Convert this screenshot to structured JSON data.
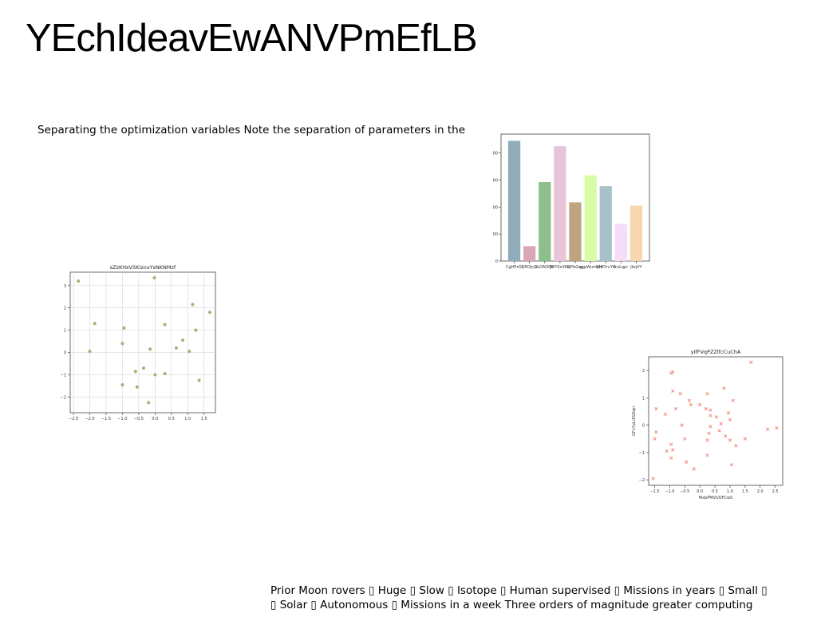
{
  "slide": {
    "title": "YEchIdeavEwANVPmEfLB",
    "subtitle": "Separating the optimization variables Note the separation of parameters in the",
    "footer_line1": "Prior Moon rovers ▯ Huge ▯ Slow ▯ Isotope ▯ Human supervised ▯ Missions in years ▯ Small ▯",
    "footer_line2": "▯ Solar ▯ Autonomous ▯ Missions in a week Three orders of magnitude greater computing"
  },
  "chart_data": [
    {
      "type": "bar",
      "title": "",
      "xlabel": "",
      "ylabel": "",
      "categories": [
        "CgHFzGl",
        "QROJnJk",
        "ILOADIW",
        "JWYSoYAQ",
        "lnPbGqp",
        "ngpWumeH",
        "QhKYrcYD",
        "IruLqpr",
        "JbqVY"
      ],
      "values": [
        890,
        110,
        585,
        850,
        435,
        635,
        555,
        275,
        410
      ],
      "colors": [
        "#8fadb8",
        "#d9a6b4",
        "#8cbf8d",
        "#e8c4d8",
        "#c0a480",
        "#d8fca6",
        "#a6c2c8",
        "#f5dcf7",
        "#f6d7b0"
      ],
      "ylim": [
        0,
        940
      ],
      "yticks": [
        0,
        200,
        400,
        600,
        800
      ],
      "grid": false
    },
    {
      "type": "scatter",
      "title": "sZzKHsVSKiznxYsNKNMzf",
      "xlabel": "",
      "ylabel": "",
      "xlim": [
        -2.6,
        1.85
      ],
      "ylim": [
        -2.7,
        3.6
      ],
      "xticks": [
        -2.5,
        -2.0,
        -1.5,
        -1.0,
        -0.5,
        0.0,
        0.5,
        1.0,
        1.5
      ],
      "xtick_labels": [
        "−2.5",
        "−2.0",
        "−1.5",
        "−1.0",
        "−0.5",
        "0.0",
        "0.5",
        "1.0",
        "1.5"
      ],
      "yticks": [
        -2,
        -1,
        0,
        1,
        2,
        3
      ],
      "ytick_labels": [
        "−2",
        "−1",
        "0",
        "1",
        "2",
        "3"
      ],
      "grid": true,
      "marker": "circle",
      "color": "#a8b074",
      "points": [
        [
          -2.35,
          3.2
        ],
        [
          -0.02,
          3.35
        ],
        [
          -1.85,
          1.3
        ],
        [
          -2.0,
          0.05
        ],
        [
          -0.95,
          1.1
        ],
        [
          -1.0,
          0.4
        ],
        [
          0.3,
          1.25
        ],
        [
          1.15,
          2.15
        ],
        [
          1.68,
          1.8
        ],
        [
          1.25,
          1.0
        ],
        [
          0.85,
          0.55
        ],
        [
          0.65,
          0.2
        ],
        [
          1.05,
          0.05
        ],
        [
          -0.15,
          0.15
        ],
        [
          -0.35,
          -0.7
        ],
        [
          -0.6,
          -0.85
        ],
        [
          0.3,
          -0.95
        ],
        [
          0.0,
          -1.0
        ],
        [
          -1.0,
          -1.45
        ],
        [
          -0.55,
          -1.55
        ],
        [
          1.35,
          -1.25
        ],
        [
          -0.2,
          -2.25
        ]
      ]
    },
    {
      "type": "scatter",
      "title": "yIfFVqPZZlfcCuChA",
      "xlabel": "MxbPMVUOFCwS",
      "ylabel": "GFvYpLiZGAqn",
      "xlim": [
        -1.7,
        2.75
      ],
      "ylim": [
        -2.2,
        2.5
      ],
      "xticks": [
        -1.5,
        -1.0,
        -0.5,
        0.0,
        0.5,
        1.0,
        1.5,
        2.0,
        2.5
      ],
      "xtick_labels": [
        "−1.5",
        "−1.0",
        "−0.5",
        "0.0",
        "0.5",
        "1.0",
        "1.5",
        "2.0",
        "2.5"
      ],
      "yticks": [
        -2,
        -1,
        0,
        1,
        2
      ],
      "ytick_labels": [
        "−2",
        "−1",
        "0",
        "1",
        "2"
      ],
      "grid": false,
      "marker": "x",
      "color": "#f08070",
      "points": [
        [
          1.7,
          2.3
        ],
        [
          -0.95,
          1.9
        ],
        [
          -0.9,
          1.95
        ],
        [
          -0.9,
          1.25
        ],
        [
          -0.65,
          1.15
        ],
        [
          0.25,
          1.15
        ],
        [
          0.8,
          1.35
        ],
        [
          1.1,
          0.9
        ],
        [
          -0.35,
          0.9
        ],
        [
          -0.3,
          0.75
        ],
        [
          -0.8,
          0.6
        ],
        [
          -1.45,
          0.6
        ],
        [
          -1.15,
          0.4
        ],
        [
          0.0,
          0.75
        ],
        [
          0.35,
          0.55
        ],
        [
          0.55,
          0.3
        ],
        [
          0.95,
          0.45
        ],
        [
          0.35,
          0.35
        ],
        [
          1.0,
          0.2
        ],
        [
          -0.6,
          0.0
        ],
        [
          0.35,
          -0.05
        ],
        [
          0.65,
          -0.2
        ],
        [
          0.85,
          -0.4
        ],
        [
          0.3,
          -0.3
        ],
        [
          -1.45,
          -0.25
        ],
        [
          -1.5,
          -0.5
        ],
        [
          -0.5,
          -0.5
        ],
        [
          0.25,
          -0.55
        ],
        [
          1.0,
          -0.55
        ],
        [
          1.5,
          -0.5
        ],
        [
          1.2,
          -0.75
        ],
        [
          -0.95,
          -0.7
        ],
        [
          -1.1,
          -0.95
        ],
        [
          -0.9,
          -0.9
        ],
        [
          -0.95,
          -1.2
        ],
        [
          0.25,
          -1.1
        ],
        [
          -0.45,
          -1.35
        ],
        [
          -0.2,
          -1.6
        ],
        [
          1.05,
          -1.45
        ],
        [
          -1.55,
          -1.95
        ],
        [
          2.25,
          -0.15
        ],
        [
          2.55,
          -0.1
        ],
        [
          0.2,
          0.6
        ],
        [
          0.7,
          0.05
        ]
      ]
    }
  ]
}
